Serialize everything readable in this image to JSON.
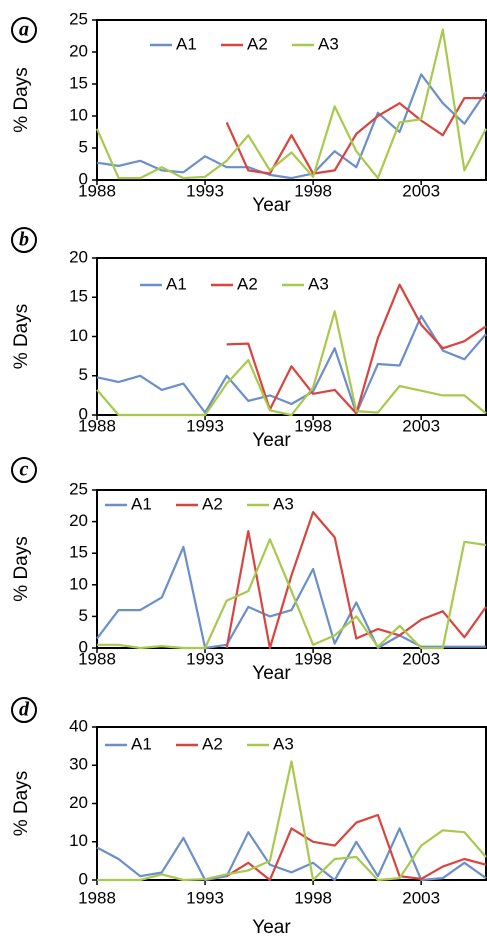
{
  "chart_data": [
    {
      "type": "line",
      "panel_label": "a",
      "xlabel": "Year",
      "ylabel": "% Days",
      "x": [
        1988,
        1989,
        1990,
        1991,
        1992,
        1993,
        1994,
        1995,
        1996,
        1997,
        1998,
        1999,
        2000,
        2001,
        2002,
        2003,
        2004,
        2005,
        2006
      ],
      "xlim": [
        1988,
        2006
      ],
      "xticks": [
        1988,
        1993,
        1998,
        2003
      ],
      "ylim": [
        0,
        25
      ],
      "yticks": [
        0,
        5,
        10,
        15,
        20,
        25
      ],
      "series": [
        {
          "name": "A1",
          "color": "#6a8fca",
          "values": [
            2.7,
            2.2,
            3,
            1.5,
            1.2,
            3.7,
            2,
            2,
            0.8,
            0.3,
            1,
            4.5,
            2,
            10.5,
            7.5,
            16.5,
            12,
            8.8,
            13.8
          ]
        },
        {
          "name": "A2",
          "color": "#d9443f",
          "values": [
            null,
            null,
            null,
            null,
            null,
            null,
            9,
            1.5,
            1,
            7,
            1,
            1.5,
            7.2,
            10,
            12,
            9.3,
            7,
            12.8,
            12.8
          ]
        },
        {
          "name": "A3",
          "color": "#a8c94c",
          "values": [
            8,
            0.3,
            0.3,
            2,
            0.3,
            0.5,
            3,
            7,
            1.5,
            4.3,
            0.5,
            11.5,
            4.5,
            0.3,
            9,
            9.5,
            23.5,
            1.5,
            8
          ]
        }
      ]
    },
    {
      "type": "line",
      "panel_label": "b",
      "xlabel": "Year",
      "ylabel": "% Days",
      "x": [
        1988,
        1989,
        1990,
        1991,
        1992,
        1993,
        1994,
        1995,
        1996,
        1997,
        1998,
        1999,
        2000,
        2001,
        2002,
        2003,
        2004,
        2005,
        2006
      ],
      "xlim": [
        1988,
        2006
      ],
      "xticks": [
        1988,
        1993,
        1998,
        2003
      ],
      "ylim": [
        0,
        20
      ],
      "yticks": [
        0,
        5,
        10,
        15,
        20
      ],
      "series": [
        {
          "name": "A1",
          "color": "#6a8fca",
          "values": [
            4.8,
            4.2,
            5,
            3.2,
            4,
            0.3,
            5,
            1.8,
            2.5,
            1.4,
            3,
            8.5,
            0.2,
            6.5,
            6.3,
            12.6,
            8.2,
            7.1,
            10.3
          ]
        },
        {
          "name": "A2",
          "color": "#d9443f",
          "values": [
            null,
            null,
            null,
            null,
            null,
            null,
            9,
            9.1,
            0.7,
            6.2,
            2.7,
            3.2,
            0.2,
            9.8,
            16.6,
            11.5,
            8.5,
            9.4,
            11.3
          ]
        },
        {
          "name": "A3",
          "color": "#a8c94c",
          "values": [
            3.2,
            0,
            0,
            0,
            0,
            0,
            4,
            7,
            0.6,
            0,
            3.5,
            13.2,
            0.5,
            0.3,
            3.7,
            3.1,
            2.5,
            2.5,
            0.2
          ]
        }
      ]
    },
    {
      "type": "line",
      "panel_label": "c",
      "xlabel": "Year",
      "ylabel": "% Days",
      "x": [
        1988,
        1989,
        1990,
        1991,
        1992,
        1993,
        1994,
        1995,
        1996,
        1997,
        1998,
        1999,
        2000,
        2001,
        2002,
        2003,
        2004,
        2005,
        2006
      ],
      "xlim": [
        1988,
        2006
      ],
      "xticks": [
        1988,
        1993,
        1998,
        2003
      ],
      "ylim": [
        0,
        25
      ],
      "yticks": [
        0,
        5,
        10,
        15,
        20,
        25
      ],
      "series": [
        {
          "name": "A1",
          "color": "#6a8fca",
          "values": [
            1.5,
            6,
            6,
            8,
            16,
            0,
            0.5,
            6.5,
            5,
            6,
            12.5,
            0.7,
            7.2,
            0,
            2,
            0.2,
            0.2,
            0.2,
            0.2
          ]
        },
        {
          "name": "A2",
          "color": "#d9443f",
          "values": [
            null,
            null,
            null,
            null,
            null,
            null,
            0,
            18.5,
            0,
            11.5,
            21.5,
            17.5,
            1.5,
            3,
            2,
            4.5,
            5.8,
            1.7,
            6.5
          ]
        },
        {
          "name": "A3",
          "color": "#a8c94c",
          "values": [
            0.5,
            0.5,
            0,
            0.3,
            0,
            0,
            7.5,
            9,
            17.2,
            9,
            0.5,
            2,
            5,
            0.2,
            3.5,
            0,
            0,
            16.8,
            16.3
          ]
        }
      ]
    },
    {
      "type": "line",
      "panel_label": "d",
      "xlabel": "Year",
      "ylabel": "% Days",
      "x": [
        1988,
        1989,
        1990,
        1991,
        1992,
        1993,
        1994,
        1995,
        1996,
        1997,
        1998,
        1999,
        2000,
        2001,
        2002,
        2003,
        2004,
        2005,
        2006
      ],
      "xlim": [
        1988,
        2006
      ],
      "xticks": [
        1988,
        1993,
        1998,
        2003
      ],
      "ylim": [
        0,
        40
      ],
      "yticks": [
        0,
        10,
        20,
        30,
        40
      ],
      "series": [
        {
          "name": "A1",
          "color": "#6a8fca",
          "values": [
            8.5,
            5.5,
            1,
            2,
            11,
            0,
            1,
            12.5,
            4,
            2,
            4.5,
            0,
            10,
            1,
            13.5,
            0,
            0.5,
            4.5,
            0.5
          ]
        },
        {
          "name": "A2",
          "color": "#d9443f",
          "values": [
            null,
            null,
            null,
            null,
            null,
            null,
            1,
            4.5,
            0,
            13.5,
            10,
            9,
            15,
            17,
            1,
            0.3,
            3.5,
            5.5,
            4
          ]
        },
        {
          "name": "A3",
          "color": "#a8c94c",
          "values": [
            0,
            0,
            0,
            1.5,
            0,
            0.2,
            1.5,
            2.5,
            5,
            31,
            0,
            5.5,
            6,
            0,
            0.5,
            9,
            13,
            12.5,
            6
          ]
        }
      ]
    }
  ]
}
